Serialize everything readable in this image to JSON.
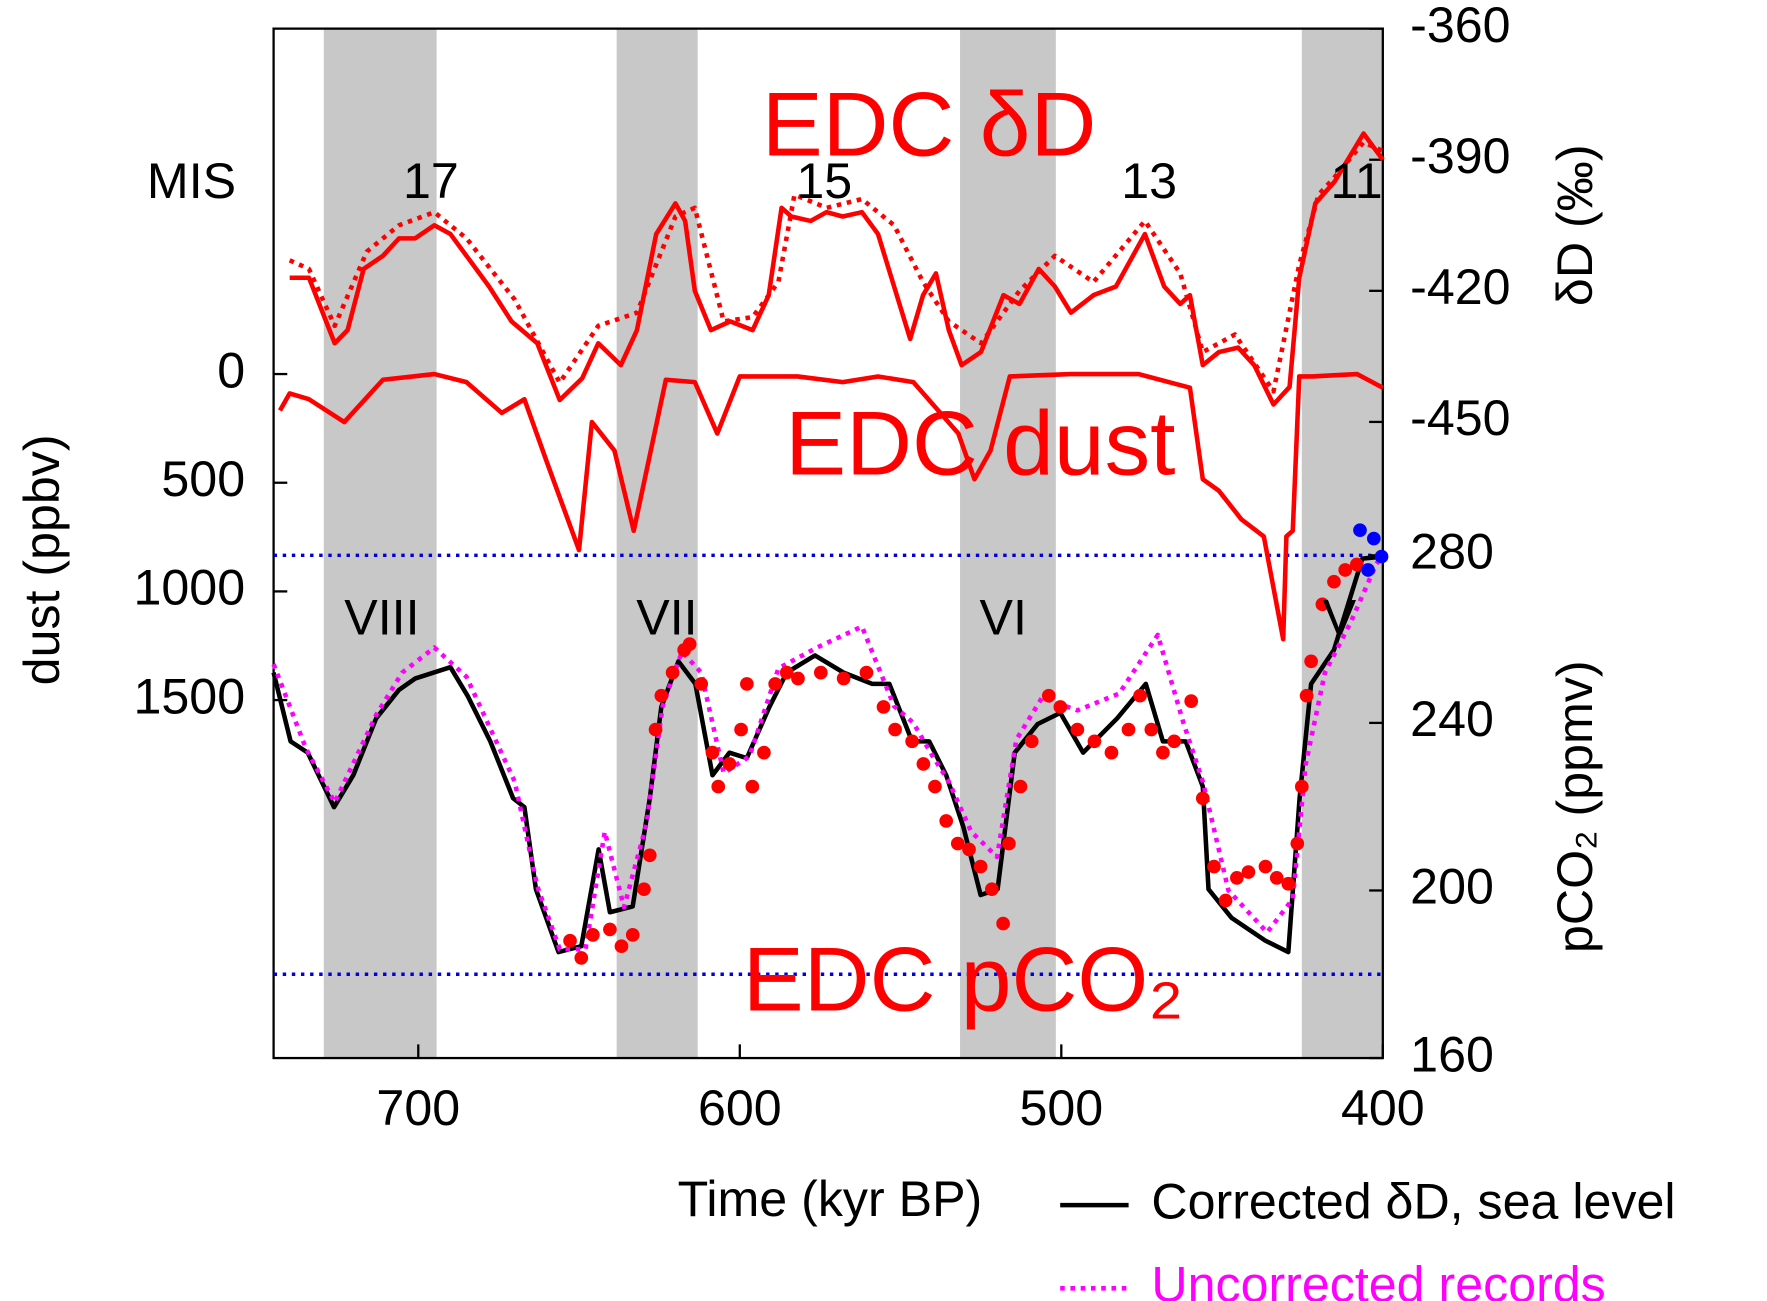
{
  "chart_data": [
    {
      "type": "line",
      "title": "EDC δD",
      "ylabel": "δD (‰)",
      "axis_side": "right",
      "ylim": [
        -450,
        -360
      ],
      "yticks": [
        -360,
        -390,
        -420,
        -450
      ],
      "mis_label": "MIS",
      "mis_stages": [
        "17",
        "15",
        "13",
        "11"
      ],
      "series": [
        {
          "color": "#ff0000",
          "style": "solid",
          "x": [
            740,
            734,
            726,
            722,
            717,
            711,
            706,
            701,
            695,
            690,
            685,
            678,
            671,
            663,
            656,
            649,
            644,
            637,
            632,
            626,
            620,
            617,
            614,
            609,
            603,
            596,
            591,
            587,
            584,
            578,
            573,
            568,
            562,
            557,
            552,
            547,
            543,
            539,
            535,
            531,
            525,
            518,
            513,
            507,
            502,
            497,
            490,
            483,
            474,
            468,
            463,
            460,
            456,
            451,
            445,
            440,
            434,
            429,
            426,
            421,
            415,
            406,
            400
          ],
          "values": [
            -417,
            -417,
            -432,
            -429,
            -415,
            -412,
            -408,
            -408,
            -405,
            -407,
            -412,
            -419,
            -427,
            -432,
            -445,
            -440,
            -432,
            -437,
            -429,
            -407,
            -400,
            -404,
            -420,
            -429,
            -427,
            -429,
            -421,
            -401,
            -403,
            -404,
            -402,
            -403,
            -402,
            -407,
            -419,
            -431,
            -421,
            -416,
            -429,
            -437,
            -434,
            -421,
            -423,
            -415,
            -419,
            -425,
            -421,
            -419,
            -407,
            -419,
            -423,
            -421,
            -437,
            -434,
            -433,
            -437,
            -446,
            -442,
            -417,
            -400,
            -395,
            -384,
            -390
          ]
        },
        {
          "color": "#ff0000",
          "style": "dotted",
          "x": [
            740,
            734,
            726,
            716,
            706,
            695,
            685,
            670,
            656,
            644,
            632,
            620,
            614,
            605,
            596,
            588,
            583,
            573,
            562,
            552,
            543,
            535,
            525,
            513,
            502,
            490,
            474,
            463,
            456,
            446,
            434,
            426,
            420,
            415,
            406,
            400
          ],
          "values": [
            -413,
            -415,
            -428,
            -411,
            -405,
            -402,
            -408,
            -422,
            -441,
            -428,
            -425,
            -403,
            -401,
            -427,
            -426,
            -418,
            -398,
            -401,
            -399,
            -405,
            -418,
            -427,
            -432,
            -420,
            -412,
            -418,
            -404,
            -416,
            -434,
            -430,
            -443,
            -414,
            -398,
            -394,
            -386,
            -388
          ]
        }
      ]
    },
    {
      "type": "line",
      "title": "EDC dust",
      "ylabel": "dust (ppbv)",
      "axis_side": "left",
      "inverted": true,
      "ylim": [
        0,
        1500
      ],
      "yticks": [
        0,
        500,
        1000,
        1500
      ],
      "series": [
        {
          "color": "#ff0000",
          "style": "solid",
          "x": [
            743,
            740,
            734,
            723,
            711,
            695,
            685,
            674,
            667,
            660,
            650,
            646,
            639,
            633,
            623,
            614,
            607,
            600,
            582,
            568,
            557,
            546,
            532,
            527,
            522,
            516,
            497,
            476,
            460,
            456,
            451,
            444,
            437,
            431,
            430,
            428,
            426,
            422,
            408,
            400
          ],
          "values": [
            168,
            89,
            116,
            221,
            26,
            0,
            37,
            179,
            116,
            405,
            810,
            221,
            352,
            721,
            26,
            37,
            274,
            11,
            11,
            37,
            11,
            37,
            274,
            484,
            352,
            11,
            0,
            0,
            63,
            484,
            537,
            668,
            747,
            1220,
            747,
            721,
            11,
            11,
            0,
            63
          ]
        }
      ]
    },
    {
      "type": "line",
      "title": "EDC pCO₂",
      "ylabel": "pCO₂ (ppmv)",
      "axis_side": "right",
      "ylim": [
        160,
        280
      ],
      "yticks": [
        160,
        200,
        240,
        280
      ],
      "xlabel": "Time (kyr BP)",
      "xlim": [
        745,
        400
      ],
      "xticks": [
        700,
        600,
        500,
        400
      ],
      "reference_lines": [
        280,
        180
      ],
      "reference_color": "#0000dd",
      "shaded_spans": [
        [
          729.4,
          694.3
        ],
        [
          638.3,
          613.1
        ],
        [
          531.5,
          501.7
        ],
        [
          425.2,
          400
        ]
      ],
      "shade_color": "#c8c8c8",
      "terminations": [
        "VIII",
        "VII",
        "VI",
        "V"
      ],
      "series": [
        {
          "name": "Corrected δD, sea level",
          "type": "line",
          "color": "#000000",
          "style": "solid",
          "x": [
            745,
            739.7,
            734.4,
            726.2,
            720.2,
            713.1,
            706,
            700.9,
            690,
            684.7,
            677.6,
            670.5,
            667,
            663.4,
            656.4,
            649.3,
            643.9,
            640.4,
            633.3,
            628,
            624.4,
            619.1,
            613.8,
            608.5,
            603.2,
            597.8,
            590.8,
            585.4,
            576.6,
            567.7,
            558.8,
            553.5,
            546.4,
            541.1,
            535.8,
            530.5,
            525.1,
            519.8,
            514.5,
            507.4,
            500.3,
            493.2,
            482.6,
            473.7,
            468.4,
            461.3,
            456,
            454.2,
            447.1,
            436.5,
            429.4,
            425.9,
            422.3,
            415.2,
            406.4,
            400
          ],
          "values": [
            252,
            235.6,
            232.9,
            219.9,
            227.5,
            241.1,
            247.9,
            250.6,
            253.3,
            246.5,
            235.6,
            222,
            219.9,
            200.3,
            185.3,
            186.7,
            209.8,
            194.8,
            196.2,
            222,
            243.8,
            254.7,
            249.3,
            227.5,
            232.9,
            231.6,
            243.8,
            252,
            256.1,
            252,
            249.3,
            249.3,
            235.6,
            235.6,
            227.5,
            215.2,
            198.9,
            200.3,
            232.9,
            239.7,
            242.4,
            232.9,
            241.1,
            249.3,
            235.6,
            235.6,
            224.8,
            200.3,
            193.5,
            188,
            185.3,
            222,
            249.3,
            257.4,
            279.2,
            279.7
          ]
        },
        {
          "name": "Uncorrected records",
          "type": "line",
          "color": "#ff00ff",
          "style": "dotted",
          "x": [
            745,
            735,
            726,
            713,
            705,
            695,
            685,
            670,
            663,
            656,
            648,
            642,
            636,
            629,
            624,
            618,
            612,
            605,
            597,
            588,
            576,
            562,
            552,
            546,
            540,
            535,
            528,
            520,
            514,
            506,
            495,
            482,
            470,
            462,
            456,
            448,
            436,
            428,
            424,
            418,
            410,
            402,
            400
          ],
          "values": [
            254,
            234,
            221,
            242,
            252,
            258,
            251,
            226,
            201,
            186,
            186,
            214,
            196,
            216,
            244,
            257,
            252,
            228,
            232,
            253,
            258,
            263,
            244,
            240,
            232,
            226,
            214,
            208,
            236,
            246,
            243,
            247,
            261,
            240,
            226,
            200,
            190,
            198,
            230,
            252,
            264,
            278,
            280
          ]
        },
        {
          "type": "scatter",
          "color": "#ff0000",
          "x": [
            652.8,
            649.3,
            645.7,
            640.4,
            636.8,
            633.3,
            629.8,
            628,
            626.2,
            624.4,
            620.9,
            617.3,
            615.6,
            612,
            608.5,
            606.7,
            603.2,
            599.6,
            597.8,
            596.1,
            592.5,
            589,
            585.4,
            581.9,
            574.8,
            567.7,
            560.6,
            555.3,
            551.7,
            546.4,
            542.9,
            539.3,
            535.8,
            532.2,
            528.7,
            525.1,
            521.6,
            518.1,
            516.3,
            512.7,
            509.2,
            503.9,
            500.3,
            495,
            489.7,
            484.4,
            479.1,
            475.5,
            472,
            468.4,
            464.9,
            459.6,
            456,
            452.5,
            448.9,
            445.4,
            441.8,
            436.5,
            433,
            429.4,
            426.6,
            425.2,
            423.7,
            422.3,
            418.8,
            415.2,
            411.7,
            408.1
          ],
          "values": [
            188,
            183.9,
            189.4,
            190.7,
            186.7,
            189.4,
            200.3,
            208.4,
            238.4,
            246.5,
            252,
            257.4,
            258.8,
            249.3,
            232.9,
            224.8,
            230.2,
            238.4,
            249.3,
            224.8,
            232.9,
            249.3,
            252,
            250.6,
            252,
            250.6,
            252,
            243.8,
            238.4,
            235.6,
            230.2,
            224.8,
            216.6,
            211.2,
            209.8,
            205.7,
            200.3,
            192.1,
            211.2,
            224.8,
            235.6,
            246.5,
            243.8,
            238.4,
            235.6,
            232.9,
            238.4,
            246.5,
            238.4,
            232.9,
            235.6,
            245.2,
            222,
            205.7,
            197.6,
            203,
            204.4,
            205.7,
            203,
            201.6,
            211.2,
            224.8,
            246.5,
            254.7,
            268.3,
            273.7,
            276.5,
            277.8
          ]
        },
        {
          "type": "scatter",
          "color": "#0000ff",
          "x": [
            407.1,
            402.8,
            404.6,
            400.4
          ],
          "values": [
            286,
            284,
            276.5,
            279.7
          ]
        }
      ]
    }
  ]
}
